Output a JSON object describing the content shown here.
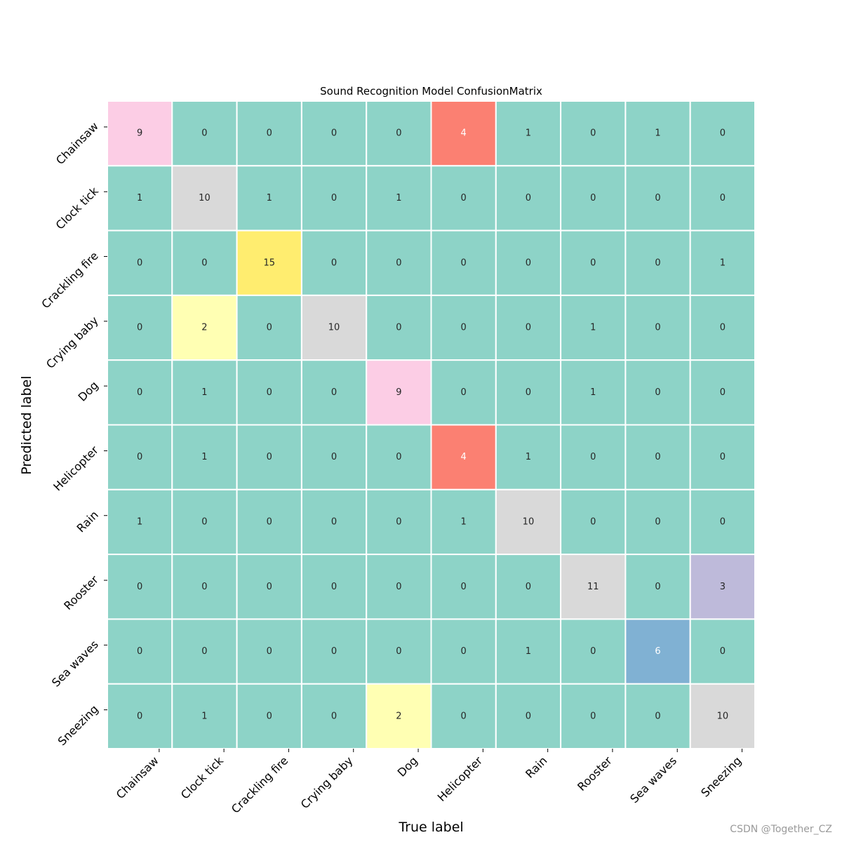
{
  "chart_data": {
    "type": "heatmap",
    "title": "Sound Recognition Model ConfusionMatrix",
    "xlabel": "True label",
    "ylabel": "Predicted label",
    "x_categories": [
      "Chainsaw",
      "Clock tick",
      "Crackling fire",
      "Crying baby",
      "Dog",
      "Helicopter",
      "Rain",
      "Rooster",
      "Sea waves",
      "Sneezing"
    ],
    "y_categories": [
      "Chainsaw",
      "Clock tick",
      "Crackling fire",
      "Crying baby",
      "Dog",
      "Helicopter",
      "Rain",
      "Rooster",
      "Sea waves",
      "Sneezing"
    ],
    "matrix": [
      [
        9,
        0,
        0,
        0,
        0,
        4,
        1,
        0,
        1,
        0
      ],
      [
        1,
        10,
        1,
        0,
        1,
        0,
        0,
        0,
        0,
        0
      ],
      [
        0,
        0,
        15,
        0,
        0,
        0,
        0,
        0,
        0,
        1
      ],
      [
        0,
        2,
        0,
        10,
        0,
        0,
        0,
        1,
        0,
        0
      ],
      [
        0,
        1,
        0,
        0,
        9,
        0,
        0,
        1,
        0,
        0
      ],
      [
        0,
        1,
        0,
        0,
        0,
        4,
        1,
        0,
        0,
        0
      ],
      [
        1,
        0,
        0,
        0,
        0,
        1,
        10,
        0,
        0,
        0
      ],
      [
        0,
        0,
        0,
        0,
        0,
        0,
        0,
        11,
        0,
        3
      ],
      [
        0,
        0,
        0,
        0,
        0,
        0,
        1,
        0,
        6,
        0
      ],
      [
        0,
        1,
        0,
        0,
        2,
        0,
        0,
        0,
        0,
        10
      ]
    ],
    "colormap": "Set3",
    "colormap_colors": [
      "#8dd3c7",
      "#ffffb3",
      "#bebada",
      "#fb8072",
      "#80b1d3",
      "#fdb462",
      "#b3de69",
      "#fccde5",
      "#d9d9d9",
      "#bc80bd",
      "#ccebc5",
      "#ffed6f"
    ],
    "value_range": [
      0,
      15
    ],
    "colorbar": false,
    "annotation_colors": {
      "dark": "#262626",
      "light": "#ffffff"
    }
  },
  "watermark": "CSDN @Together_CZ"
}
